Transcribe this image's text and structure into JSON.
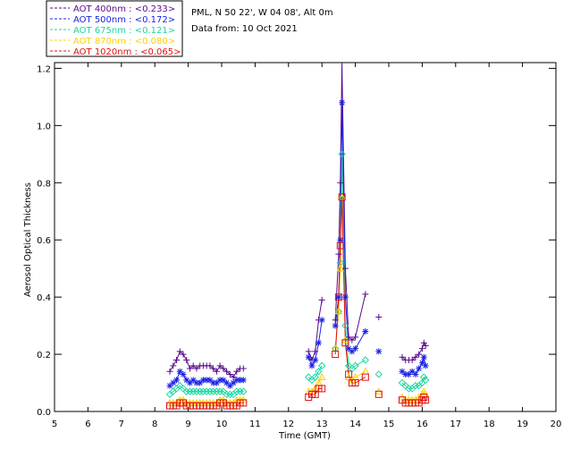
{
  "chart_data": {
    "type": "line",
    "title": "",
    "info_lines": [
      "PML, N 50 22', W 04 08', Alt 0m",
      "Data from: 10 Oct 2021"
    ],
    "xlabel": "Time (GMT)",
    "ylabel": "Aerosol Optical Thickness",
    "xlim": [
      5,
      20
    ],
    "ylim": [
      0,
      1.22
    ],
    "xticks": [
      5,
      6,
      7,
      8,
      9,
      10,
      11,
      12,
      13,
      14,
      15,
      16,
      17,
      18,
      19,
      20
    ],
    "yticks": [
      0.0,
      0.2,
      0.4,
      0.6,
      0.8,
      1.0,
      1.2
    ],
    "ytick_labels": [
      "0.0",
      "0.2",
      "0.4",
      "0.6",
      "0.8",
      "1.0",
      "1.2"
    ],
    "legend_position": "top-left, outside plot",
    "series": [
      {
        "name": "AOT  400nm : <0.233>",
        "color": "#5a0a8c",
        "marker": "plus",
        "points": [
          [
            8.45,
            0.14
          ],
          [
            8.55,
            0.16
          ],
          [
            8.65,
            0.18
          ],
          [
            8.75,
            0.21
          ],
          [
            8.85,
            0.2
          ],
          [
            8.95,
            0.18
          ],
          [
            9.05,
            0.15
          ],
          [
            9.15,
            0.16
          ],
          [
            9.25,
            0.15
          ],
          [
            9.35,
            0.16
          ],
          [
            9.45,
            0.16
          ],
          [
            9.55,
            0.16
          ],
          [
            9.65,
            0.16
          ],
          [
            9.75,
            0.15
          ],
          [
            9.85,
            0.14
          ],
          [
            9.95,
            0.16
          ],
          [
            10.05,
            0.15
          ],
          [
            10.15,
            0.14
          ],
          [
            10.25,
            0.13
          ],
          [
            10.35,
            0.12
          ],
          [
            10.45,
            0.14
          ],
          [
            10.55,
            0.15
          ],
          [
            10.65,
            0.15
          ],
          [
            12.6,
            0.21
          ],
          [
            12.7,
            0.18
          ],
          [
            12.8,
            0.21
          ],
          [
            12.9,
            0.32
          ],
          [
            13.0,
            0.39
          ],
          [
            13.4,
            0.32
          ],
          [
            13.5,
            0.55
          ],
          [
            13.55,
            0.8
          ],
          [
            13.6,
            1.25
          ],
          [
            13.7,
            0.5
          ],
          [
            13.8,
            0.26
          ],
          [
            13.9,
            0.25
          ],
          [
            14.0,
            0.26
          ],
          [
            14.3,
            0.41
          ],
          [
            14.7,
            0.33
          ],
          [
            15.4,
            0.19
          ],
          [
            15.5,
            0.18
          ],
          [
            15.6,
            0.18
          ],
          [
            15.7,
            0.18
          ],
          [
            15.8,
            0.19
          ],
          [
            15.9,
            0.2
          ],
          [
            16.0,
            0.22
          ],
          [
            16.05,
            0.24
          ],
          [
            16.1,
            0.23
          ]
        ]
      },
      {
        "name": "AOT  500nm : <0.172>",
        "color": "#1a22e6",
        "marker": "asterisk",
        "points": [
          [
            8.45,
            0.09
          ],
          [
            8.55,
            0.1
          ],
          [
            8.65,
            0.11
          ],
          [
            8.75,
            0.14
          ],
          [
            8.85,
            0.13
          ],
          [
            8.95,
            0.11
          ],
          [
            9.05,
            0.1
          ],
          [
            9.15,
            0.11
          ],
          [
            9.25,
            0.1
          ],
          [
            9.35,
            0.1
          ],
          [
            9.45,
            0.11
          ],
          [
            9.55,
            0.11
          ],
          [
            9.65,
            0.11
          ],
          [
            9.75,
            0.1
          ],
          [
            9.85,
            0.1
          ],
          [
            9.95,
            0.11
          ],
          [
            10.05,
            0.11
          ],
          [
            10.15,
            0.1
          ],
          [
            10.25,
            0.09
          ],
          [
            10.35,
            0.1
          ],
          [
            10.45,
            0.11
          ],
          [
            10.55,
            0.11
          ],
          [
            10.65,
            0.11
          ],
          [
            12.6,
            0.19
          ],
          [
            12.7,
            0.16
          ],
          [
            12.8,
            0.18
          ],
          [
            12.9,
            0.24
          ],
          [
            13.0,
            0.32
          ],
          [
            13.4,
            0.3
          ],
          [
            13.5,
            0.4
          ],
          [
            13.55,
            0.6
          ],
          [
            13.6,
            1.08
          ],
          [
            13.7,
            0.4
          ],
          [
            13.8,
            0.22
          ],
          [
            13.9,
            0.21
          ],
          [
            14.0,
            0.22
          ],
          [
            14.3,
            0.28
          ],
          [
            14.7,
            0.21
          ],
          [
            15.4,
            0.14
          ],
          [
            15.5,
            0.13
          ],
          [
            15.6,
            0.13
          ],
          [
            15.7,
            0.14
          ],
          [
            15.8,
            0.13
          ],
          [
            15.9,
            0.15
          ],
          [
            16.0,
            0.17
          ],
          [
            16.05,
            0.19
          ],
          [
            16.1,
            0.16
          ]
        ]
      },
      {
        "name": "AOT  675nm : <0.121>",
        "color": "#19d7a0",
        "marker": "diamond",
        "points": [
          [
            8.45,
            0.06
          ],
          [
            8.55,
            0.07
          ],
          [
            8.65,
            0.08
          ],
          [
            8.75,
            0.09
          ],
          [
            8.85,
            0.08
          ],
          [
            8.95,
            0.07
          ],
          [
            9.05,
            0.07
          ],
          [
            9.15,
            0.07
          ],
          [
            9.25,
            0.07
          ],
          [
            9.35,
            0.07
          ],
          [
            9.45,
            0.07
          ],
          [
            9.55,
            0.07
          ],
          [
            9.65,
            0.07
          ],
          [
            9.75,
            0.07
          ],
          [
            9.85,
            0.07
          ],
          [
            9.95,
            0.07
          ],
          [
            10.05,
            0.07
          ],
          [
            10.15,
            0.06
          ],
          [
            10.25,
            0.06
          ],
          [
            10.35,
            0.06
          ],
          [
            10.45,
            0.07
          ],
          [
            10.55,
            0.07
          ],
          [
            10.65,
            0.07
          ],
          [
            12.6,
            0.12
          ],
          [
            12.7,
            0.11
          ],
          [
            12.8,
            0.12
          ],
          [
            12.9,
            0.14
          ],
          [
            13.0,
            0.16
          ],
          [
            13.4,
            0.22
          ],
          [
            13.5,
            0.35
          ],
          [
            13.55,
            0.52
          ],
          [
            13.6,
            0.9
          ],
          [
            13.7,
            0.3
          ],
          [
            13.8,
            0.16
          ],
          [
            13.9,
            0.15
          ],
          [
            14.0,
            0.16
          ],
          [
            14.3,
            0.18
          ],
          [
            14.7,
            0.13
          ],
          [
            15.4,
            0.1
          ],
          [
            15.5,
            0.09
          ],
          [
            15.6,
            0.08
          ],
          [
            15.7,
            0.08
          ],
          [
            15.8,
            0.09
          ],
          [
            15.9,
            0.09
          ],
          [
            16.0,
            0.1
          ],
          [
            16.05,
            0.12
          ],
          [
            16.1,
            0.11
          ]
        ]
      },
      {
        "name": "AOT  870nm : <0.080>",
        "color": "#ffd000",
        "marker": "triangle",
        "points": [
          [
            8.45,
            0.03
          ],
          [
            8.55,
            0.03
          ],
          [
            8.65,
            0.03
          ],
          [
            8.75,
            0.04
          ],
          [
            8.85,
            0.04
          ],
          [
            8.95,
            0.03
          ],
          [
            9.05,
            0.03
          ],
          [
            9.15,
            0.03
          ],
          [
            9.25,
            0.03
          ],
          [
            9.35,
            0.03
          ],
          [
            9.45,
            0.03
          ],
          [
            9.55,
            0.03
          ],
          [
            9.65,
            0.03
          ],
          [
            9.75,
            0.03
          ],
          [
            9.85,
            0.03
          ],
          [
            9.95,
            0.04
          ],
          [
            10.05,
            0.04
          ],
          [
            10.15,
            0.03
          ],
          [
            10.25,
            0.03
          ],
          [
            10.35,
            0.03
          ],
          [
            10.45,
            0.04
          ],
          [
            10.55,
            0.04
          ],
          [
            10.65,
            0.04
          ],
          [
            12.6,
            0.07
          ],
          [
            12.7,
            0.07
          ],
          [
            12.8,
            0.08
          ],
          [
            12.9,
            0.1
          ],
          [
            13.0,
            0.12
          ],
          [
            13.4,
            0.22
          ],
          [
            13.5,
            0.35
          ],
          [
            13.55,
            0.5
          ],
          [
            13.6,
            0.75
          ],
          [
            13.7,
            0.25
          ],
          [
            13.8,
            0.12
          ],
          [
            13.9,
            0.11
          ],
          [
            14.0,
            0.12
          ],
          [
            14.3,
            0.14
          ],
          [
            14.7,
            0.07
          ],
          [
            15.4,
            0.05
          ],
          [
            15.5,
            0.04
          ],
          [
            15.6,
            0.04
          ],
          [
            15.7,
            0.04
          ],
          [
            15.8,
            0.04
          ],
          [
            15.9,
            0.05
          ],
          [
            16.0,
            0.06
          ],
          [
            16.05,
            0.07
          ],
          [
            16.1,
            0.06
          ]
        ]
      },
      {
        "name": "AOT 1020nm : <0.065>",
        "color": "#e01010",
        "marker": "square",
        "points": [
          [
            8.45,
            0.02
          ],
          [
            8.55,
            0.02
          ],
          [
            8.65,
            0.02
          ],
          [
            8.75,
            0.03
          ],
          [
            8.85,
            0.03
          ],
          [
            8.95,
            0.02
          ],
          [
            9.05,
            0.02
          ],
          [
            9.15,
            0.02
          ],
          [
            9.25,
            0.02
          ],
          [
            9.35,
            0.02
          ],
          [
            9.45,
            0.02
          ],
          [
            9.55,
            0.02
          ],
          [
            9.65,
            0.02
          ],
          [
            9.75,
            0.02
          ],
          [
            9.85,
            0.02
          ],
          [
            9.95,
            0.03
          ],
          [
            10.05,
            0.03
          ],
          [
            10.15,
            0.02
          ],
          [
            10.25,
            0.02
          ],
          [
            10.35,
            0.02
          ],
          [
            10.45,
            0.02
          ],
          [
            10.55,
            0.03
          ],
          [
            10.65,
            0.03
          ],
          [
            12.6,
            0.05
          ],
          [
            12.7,
            0.06
          ],
          [
            12.8,
            0.06
          ],
          [
            12.9,
            0.08
          ],
          [
            13.0,
            0.08
          ],
          [
            13.4,
            0.2
          ],
          [
            13.5,
            0.4
          ],
          [
            13.55,
            0.58
          ],
          [
            13.6,
            0.75
          ],
          [
            13.7,
            0.24
          ],
          [
            13.8,
            0.13
          ],
          [
            13.9,
            0.1
          ],
          [
            14.0,
            0.1
          ],
          [
            14.3,
            0.12
          ],
          [
            14.7,
            0.06
          ],
          [
            15.4,
            0.04
          ],
          [
            15.5,
            0.03
          ],
          [
            15.6,
            0.03
          ],
          [
            15.7,
            0.03
          ],
          [
            15.8,
            0.03
          ],
          [
            15.9,
            0.03
          ],
          [
            16.0,
            0.04
          ],
          [
            16.05,
            0.05
          ],
          [
            16.1,
            0.04
          ]
        ]
      }
    ]
  }
}
